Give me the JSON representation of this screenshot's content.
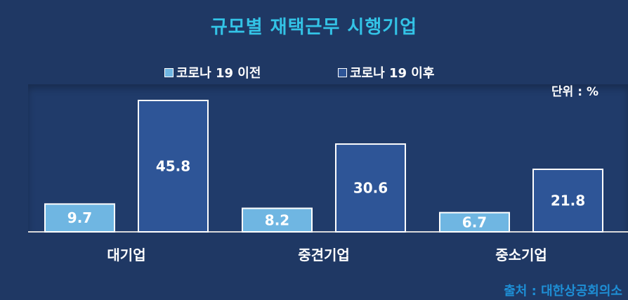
{
  "chart_data": {
    "type": "bar",
    "title": "규모별 재택근무 시행기업",
    "categories": [
      "대기업",
      "중견기업",
      "중소기업"
    ],
    "series": [
      {
        "name": "코로나 19 이전",
        "values": [
          9.7,
          8.2,
          6.7
        ],
        "color": "#6fb6e2"
      },
      {
        "name": "코로나 19 이후",
        "values": [
          45.8,
          30.6,
          21.8
        ],
        "color": "#2e5597"
      }
    ],
    "unit": "단위 : %",
    "ylim": [
      0,
      50
    ],
    "grid": false,
    "legend_position": "top"
  },
  "source": "출처 : 대한상공회의소"
}
